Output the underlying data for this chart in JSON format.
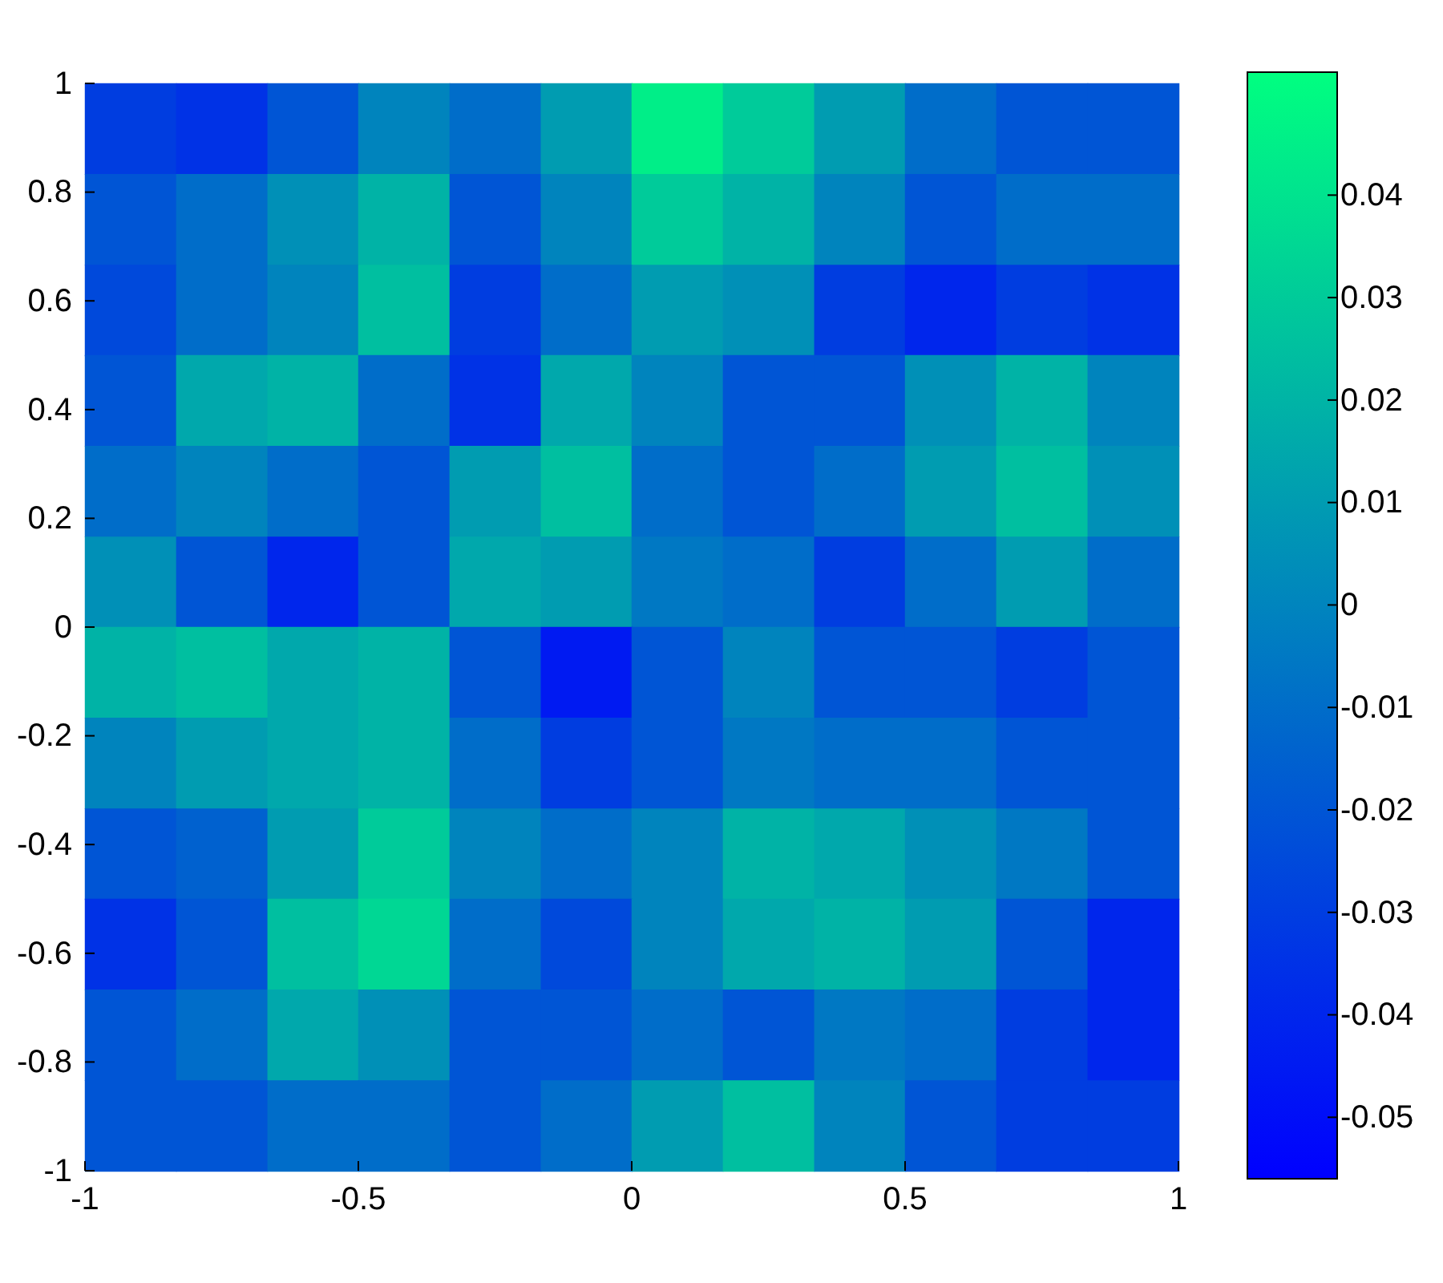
{
  "chart_data": {
    "type": "heatmap",
    "x": [
      -0.917,
      -0.75,
      -0.583,
      -0.417,
      -0.25,
      -0.083,
      0.083,
      0.25,
      0.417,
      0.583,
      0.75,
      0.917
    ],
    "y": [
      0.917,
      0.75,
      0.583,
      0.417,
      0.25,
      0.083,
      -0.083,
      -0.25,
      -0.417,
      -0.583,
      -0.75,
      -0.917
    ],
    "xlim": [
      -1,
      1
    ],
    "ylim": [
      -1,
      1
    ],
    "xticks": [
      -1,
      -0.5,
      0,
      0.5,
      1
    ],
    "yticks": [
      -1,
      -0.8,
      -0.6,
      -0.4,
      -0.2,
      0,
      0.2,
      0.4,
      0.6,
      0.8,
      1
    ],
    "clim": [
      -0.056,
      0.052
    ],
    "cticks": [
      -0.05,
      -0.04,
      -0.03,
      -0.02,
      -0.01,
      0,
      0.01,
      0.02,
      0.03,
      0.04
    ],
    "cells": [
      [
        -0.03,
        -0.035,
        -0.02,
        0,
        -0.01,
        0.01,
        0.045,
        0.03,
        0.01,
        -0.01,
        -0.02,
        -0.02
      ],
      [
        -0.02,
        -0.01,
        0.005,
        0.02,
        -0.02,
        0,
        0.03,
        0.02,
        0,
        -0.02,
        -0.01,
        -0.01
      ],
      [
        -0.025,
        -0.01,
        0,
        0.025,
        -0.03,
        -0.01,
        0.01,
        0.005,
        -0.03,
        -0.04,
        -0.03,
        -0.035
      ],
      [
        -0.02,
        0.015,
        0.02,
        -0.01,
        -0.035,
        0.015,
        0,
        -0.02,
        -0.02,
        0.005,
        0.02,
        0
      ],
      [
        -0.01,
        0,
        -0.01,
        -0.02,
        0.01,
        0.025,
        -0.01,
        -0.02,
        -0.01,
        0.01,
        0.025,
        0.005
      ],
      [
        0.005,
        -0.02,
        -0.04,
        -0.02,
        0.015,
        0.01,
        -0.005,
        -0.01,
        -0.03,
        -0.01,
        0.01,
        -0.01
      ],
      [
        0.02,
        0.025,
        0.015,
        0.02,
        -0.02,
        -0.045,
        -0.02,
        0,
        -0.02,
        -0.02,
        -0.03,
        -0.02
      ],
      [
        0,
        0.01,
        0.015,
        0.02,
        -0.01,
        -0.03,
        -0.02,
        -0.005,
        -0.01,
        -0.01,
        -0.02,
        -0.02
      ],
      [
        -0.02,
        -0.015,
        0.01,
        0.03,
        0,
        -0.01,
        0,
        0.02,
        0.015,
        0.005,
        -0.005,
        -0.02
      ],
      [
        -0.035,
        -0.02,
        0.025,
        0.035,
        -0.01,
        -0.025,
        0,
        0.015,
        0.02,
        0.01,
        -0.02,
        -0.04
      ],
      [
        -0.02,
        -0.01,
        0.015,
        0.005,
        -0.02,
        -0.02,
        -0.01,
        -0.02,
        -0.005,
        -0.01,
        -0.03,
        -0.04
      ],
      [
        -0.02,
        -0.02,
        -0.01,
        -0.01,
        -0.02,
        -0.01,
        0.01,
        0.025,
        0,
        -0.02,
        -0.03,
        -0.03
      ]
    ]
  }
}
